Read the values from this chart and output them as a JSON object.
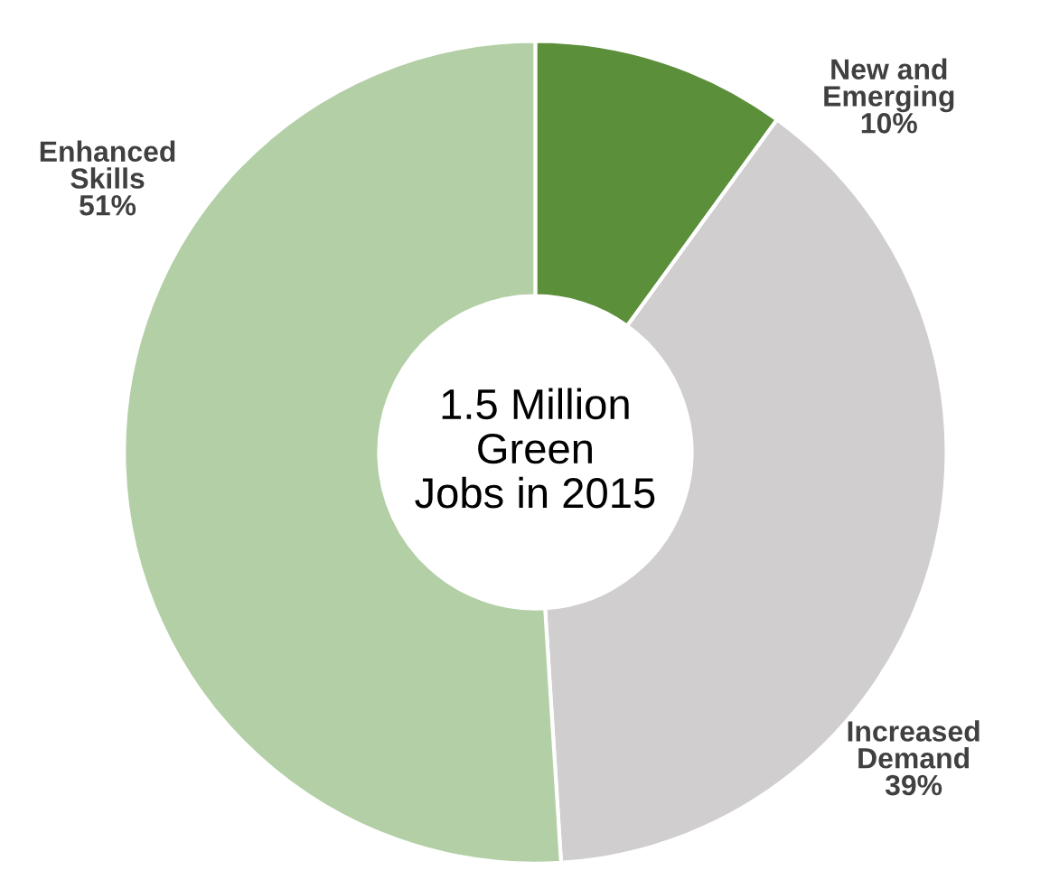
{
  "chart_data": {
    "type": "donut",
    "categories": [
      "New and Emerging",
      "Increased Demand",
      "Enhanced Skills"
    ],
    "values": [
      10,
      39,
      51
    ],
    "value_labels": [
      "10%",
      "39%",
      "51%"
    ],
    "colors": [
      "#5b8f3a",
      "#d0cece",
      "#b3cfa6"
    ],
    "annotations": [
      "1.5 Million Green Jobs in 2015"
    ]
  }
}
